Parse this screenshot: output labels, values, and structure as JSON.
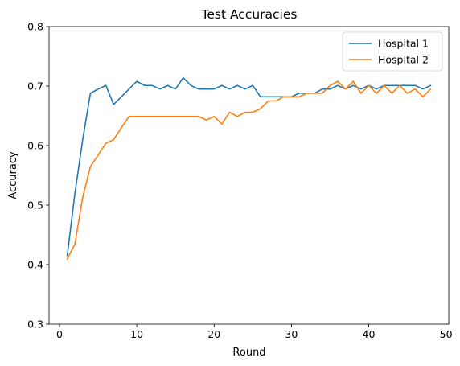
{
  "chart_data": {
    "type": "line",
    "title": "Test Accuracies",
    "xlabel": "Round",
    "ylabel": "Accuracy",
    "xlim": [
      -1.35,
      50.35
    ],
    "ylim": [
      0.3,
      0.8
    ],
    "xticks": [
      0,
      10,
      20,
      30,
      40,
      50
    ],
    "yticks": [
      0.3,
      0.4,
      0.5,
      0.6,
      0.7,
      0.8
    ],
    "xtick_labels": [
      "0",
      "10",
      "20",
      "30",
      "40",
      "50"
    ],
    "ytick_labels": [
      "0.3",
      "0.4",
      "0.5",
      "0.6",
      "0.7",
      "0.8"
    ],
    "grid": false,
    "legend_position": "top-right",
    "x": [
      1,
      2,
      3,
      4,
      5,
      6,
      7,
      8,
      9,
      10,
      11,
      12,
      13,
      14,
      15,
      16,
      17,
      18,
      19,
      20,
      21,
      22,
      23,
      24,
      25,
      26,
      27,
      28,
      29,
      30,
      31,
      32,
      33,
      34,
      35,
      36,
      37,
      38,
      39,
      40,
      41,
      42,
      43,
      44,
      45,
      46,
      47,
      48
    ],
    "series": [
      {
        "name": "Hospital 1",
        "color": "#1f77b4",
        "values": [
          0.415,
          0.52,
          0.61,
          0.688,
          0.695,
          0.701,
          0.669,
          0.682,
          0.695,
          0.708,
          0.701,
          0.701,
          0.695,
          0.701,
          0.695,
          0.714,
          0.701,
          0.695,
          0.695,
          0.695,
          0.701,
          0.695,
          0.701,
          0.695,
          0.701,
          0.682,
          0.682,
          0.682,
          0.682,
          0.682,
          0.688,
          0.688,
          0.688,
          0.695,
          0.695,
          0.701,
          0.695,
          0.701,
          0.695,
          0.701,
          0.695,
          0.701,
          0.701,
          0.701,
          0.701,
          0.701,
          0.695,
          0.701
        ]
      },
      {
        "name": "Hospital 2",
        "color": "#ff7f0e",
        "values": [
          0.409,
          0.435,
          0.513,
          0.565,
          0.584,
          0.604,
          0.61,
          0.63,
          0.649,
          0.649,
          0.649,
          0.649,
          0.649,
          0.649,
          0.649,
          0.649,
          0.649,
          0.649,
          0.643,
          0.649,
          0.636,
          0.656,
          0.649,
          0.656,
          0.656,
          0.662,
          0.675,
          0.675,
          0.682,
          0.682,
          0.682,
          0.688,
          0.688,
          0.688,
          0.701,
          0.708,
          0.695,
          0.708,
          0.688,
          0.701,
          0.688,
          0.701,
          0.688,
          0.701,
          0.688,
          0.695,
          0.682,
          0.695
        ]
      }
    ]
  }
}
